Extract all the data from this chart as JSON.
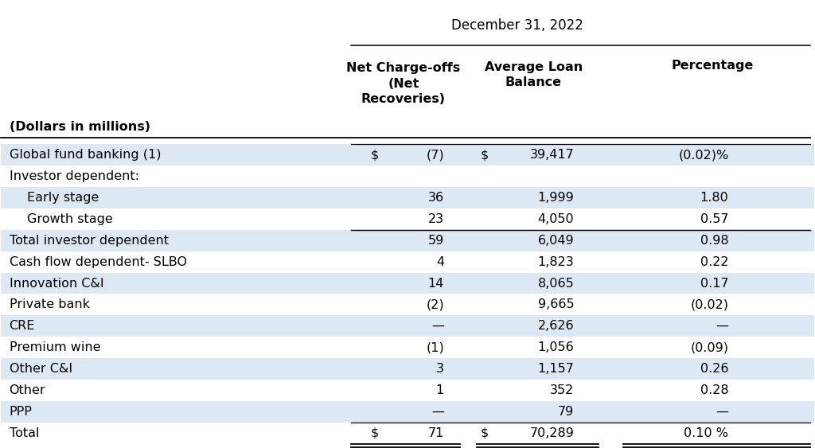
{
  "title": "December 31, 2022",
  "header_label": "(Dollars in millions)",
  "col_headers": [
    "Net Charge-offs\n(Net\nRecoveries)",
    "Average Loan\nBalance",
    "Percentage"
  ],
  "rows": [
    {
      "label": "Global fund banking (1)",
      "values": [
        "$",
        "(7)",
        "$",
        "39,417",
        "(0.02)%"
      ],
      "bg": "#dce9f5",
      "bold": false,
      "indent": 0,
      "top_border": true,
      "bottom_border": false
    },
    {
      "label": "Investor dependent:",
      "values": [
        "",
        "",
        "",
        "",
        ""
      ],
      "bg": "#ffffff",
      "bold": false,
      "indent": 0,
      "top_border": false,
      "bottom_border": false
    },
    {
      "label": "Early stage",
      "values": [
        "",
        "36",
        "",
        "1,999",
        "1.80"
      ],
      "bg": "#dce9f5",
      "bold": false,
      "indent": 1,
      "top_border": false,
      "bottom_border": false
    },
    {
      "label": "Growth stage",
      "values": [
        "",
        "23",
        "",
        "4,050",
        "0.57"
      ],
      "bg": "#ffffff",
      "bold": false,
      "indent": 1,
      "top_border": false,
      "bottom_border": true
    },
    {
      "label": "Total investor dependent",
      "values": [
        "",
        "59",
        "",
        "6,049",
        "0.98"
      ],
      "bg": "#dce9f5",
      "bold": false,
      "indent": 0,
      "top_border": true,
      "bottom_border": false
    },
    {
      "label": "Cash flow dependent- SLBO",
      "values": [
        "",
        "4",
        "",
        "1,823",
        "0.22"
      ],
      "bg": "#ffffff",
      "bold": false,
      "indent": 0,
      "top_border": false,
      "bottom_border": false
    },
    {
      "label": "Innovation C&I",
      "values": [
        "",
        "14",
        "",
        "8,065",
        "0.17"
      ],
      "bg": "#dce9f5",
      "bold": false,
      "indent": 0,
      "top_border": false,
      "bottom_border": false
    },
    {
      "label": "Private bank",
      "values": [
        "",
        "(2)",
        "",
        "9,665",
        "(0.02)"
      ],
      "bg": "#ffffff",
      "bold": false,
      "indent": 0,
      "top_border": false,
      "bottom_border": false
    },
    {
      "label": "CRE",
      "values": [
        "",
        "—",
        "",
        "2,626",
        "—"
      ],
      "bg": "#dce9f5",
      "bold": false,
      "indent": 0,
      "top_border": false,
      "bottom_border": false
    },
    {
      "label": "Premium wine",
      "values": [
        "",
        "(1)",
        "",
        "1,056",
        "(0.09)"
      ],
      "bg": "#ffffff",
      "bold": false,
      "indent": 0,
      "top_border": false,
      "bottom_border": false
    },
    {
      "label": "Other C&I",
      "values": [
        "",
        "3",
        "",
        "1,157",
        "0.26"
      ],
      "bg": "#dce9f5",
      "bold": false,
      "indent": 0,
      "top_border": false,
      "bottom_border": false
    },
    {
      "label": "Other",
      "values": [
        "",
        "1",
        "",
        "352",
        "0.28"
      ],
      "bg": "#ffffff",
      "bold": false,
      "indent": 0,
      "top_border": false,
      "bottom_border": false
    },
    {
      "label": "PPP",
      "values": [
        "",
        "—",
        "",
        "79",
        "—"
      ],
      "bg": "#dce9f5",
      "bold": false,
      "indent": 0,
      "top_border": false,
      "bottom_border": true
    },
    {
      "label": "Total",
      "values": [
        "$",
        "71",
        "$",
        "70,289",
        "0.10 %"
      ],
      "bg": "#ffffff",
      "bold": false,
      "indent": 0,
      "top_border": false,
      "bottom_border": true
    }
  ],
  "bg_color": "#ffffff",
  "stripe_color": "#dce9f5",
  "font_size": 11.5,
  "header_font_size": 11.5
}
